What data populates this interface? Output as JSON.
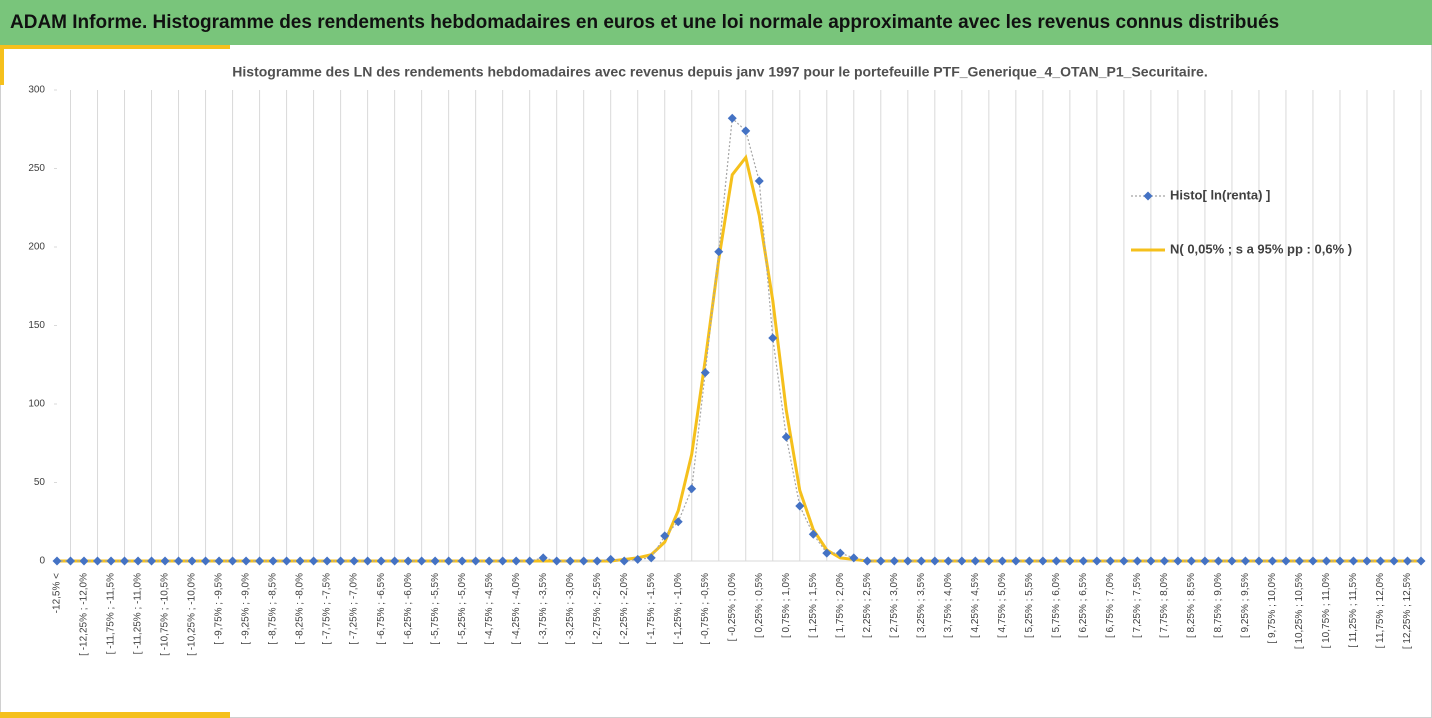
{
  "header": {
    "title": "ADAM Informe. Histogramme des rendements hebdomadaires en euros et une loi normale approximante avec les revenus connus distribués"
  },
  "chart_data": {
    "type": "line",
    "title": "Histogramme des LN des rendements hebdomadaires avec revenus depuis janv 1997 pour le portefeuille PTF_Generique_4_OTAN_P1_Securitaire.",
    "categories": [
      "-12,5% <",
      null,
      "[ -12,25% ; -12,0%",
      null,
      "[ -11,75% ; -11,5%",
      null,
      "[ -11,25% ; -11,0%",
      null,
      "[ -10,75% ; -10,5%",
      null,
      "[ -10,25% ; -10,0%",
      null,
      "[ -9,75% ; -9,5%",
      null,
      "[ -9,25% ; -9,0%",
      null,
      "[ -8,75% ; -8,5%",
      null,
      "[ -8,25% ; -8,0%",
      null,
      "[ -7,75% ; -7,5%",
      null,
      "[ -7,25% ; -7,0%",
      null,
      "[ -6,75% ; -6,5%",
      null,
      "[ -6,25% ; -6,0%",
      null,
      "[ -5,75% ; -5,5%",
      null,
      "[ -5,25% ; -5,0%",
      null,
      "[ -4,75% ; -4,5%",
      null,
      "[ -4,25% ; -4,0%",
      null,
      "[ -3,75% ; -3,5%",
      null,
      "[ -3,25% ; -3,0%",
      null,
      "[ -2,75% ; -2,5%",
      null,
      "[ -2,25% ; -2,0%",
      null,
      "[ -1,75% ; -1,5%",
      null,
      "[ -1,25% ; -1,0%",
      null,
      "[ -0,75% ; -0,5%",
      null,
      "[ -0,25% ; 0,0%",
      null,
      "[ 0,25% ; 0,5%",
      null,
      "[ 0,75% ; 1,0%",
      null,
      "[ 1,25% ; 1,5%",
      null,
      "[ 1,75% ; 2,0%",
      null,
      "[ 2,25% ; 2,5%",
      null,
      "[ 2,75% ; 3,0%",
      null,
      "[ 3,25% ; 3,5%",
      null,
      "[ 3,75% ; 4,0%",
      null,
      "[ 4,25% ; 4,5%",
      null,
      "[ 4,75% ; 5,0%",
      null,
      "[ 5,25% ; 5,5%",
      null,
      "[ 5,75% ; 6,0%",
      null,
      "[ 6,25% ; 6,5%",
      null,
      "[ 6,75% ; 7,0%",
      null,
      "[ 7,25% ; 7,5%",
      null,
      "[ 7,75% ; 8,0%",
      null,
      "[ 8,25% ; 8,5%",
      null,
      "[ 8,75% ; 9,0%",
      null,
      "[ 9,25% ; 9,5%",
      null,
      "[ 9,75% ; 10,0%",
      null,
      "[ 10,25% ; 10,5%",
      null,
      "[ 10,75% ; 11,0%",
      null,
      "[ 11,25% ; 11,5%",
      null,
      "[ 11,75% ; 12,0%",
      null,
      "[ 12,25% ; 12,5%",
      null
    ],
    "series": [
      {
        "name": "Histo[ ln(renta) ]",
        "color": "#4472c4",
        "marker": "diamond",
        "line_style": "dotted",
        "line_color": "#a5a5a5",
        "values": [
          0,
          0,
          0,
          0,
          0,
          0,
          0,
          0,
          0,
          0,
          0,
          0,
          0,
          0,
          0,
          0,
          0,
          0,
          0,
          0,
          0,
          0,
          0,
          0,
          0,
          0,
          0,
          0,
          0,
          0,
          0,
          0,
          0,
          0,
          0,
          0,
          2,
          0,
          0,
          0,
          0,
          1,
          0,
          1,
          2,
          16,
          25,
          46,
          120,
          197,
          282,
          274,
          242,
          142,
          79,
          35,
          17,
          5,
          5,
          2,
          0,
          0,
          0,
          0,
          0,
          0,
          0,
          0,
          0,
          0,
          0,
          0,
          0,
          0,
          0,
          0,
          0,
          0,
          0,
          0,
          0,
          0,
          0,
          0,
          0,
          0,
          0,
          0,
          0,
          0,
          0,
          0,
          0,
          0,
          0,
          0,
          0,
          0,
          0,
          0,
          0,
          0
        ]
      },
      {
        "name": "N( 0,05% ; s a 95% pp : 0,6% )",
        "color": "#f5c01c",
        "marker": "none",
        "line_style": "solid",
        "values": [
          0,
          0,
          0,
          0,
          0,
          0,
          0,
          0,
          0,
          0,
          0,
          0,
          0,
          0,
          0,
          0,
          0,
          0,
          0,
          0,
          0,
          0,
          0,
          0,
          0,
          0,
          0,
          0,
          0,
          0,
          0,
          0,
          0,
          0,
          0,
          0,
          0,
          0,
          0,
          0,
          0,
          0,
          1,
          2,
          4,
          12,
          32,
          68,
          128,
          192,
          246,
          257,
          220,
          166,
          96,
          45,
          20,
          7,
          2,
          1,
          0,
          0,
          0,
          0,
          0,
          0,
          0,
          0,
          0,
          0,
          0,
          0,
          0,
          0,
          0,
          0,
          0,
          0,
          0,
          0,
          0,
          0,
          0,
          0,
          0,
          0,
          0,
          0,
          0,
          0,
          0,
          0,
          0,
          0,
          0,
          0,
          0,
          0,
          0,
          0,
          0,
          0
        ]
      }
    ],
    "ylim": [
      0,
      300
    ],
    "yticks": [
      0,
      50,
      100,
      150,
      200,
      250,
      300
    ],
    "xgrid": true,
    "legend": "right"
  }
}
